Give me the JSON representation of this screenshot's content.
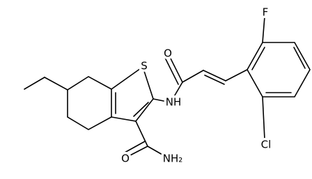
{
  "atoms": {
    "sulfur": "S",
    "amine": "NH",
    "carbonyl_oxygen": "O",
    "fluorine": "F",
    "chlorine": "Cl",
    "amide_oxygen": "O",
    "amide_nitrogen": "NH₂"
  }
}
